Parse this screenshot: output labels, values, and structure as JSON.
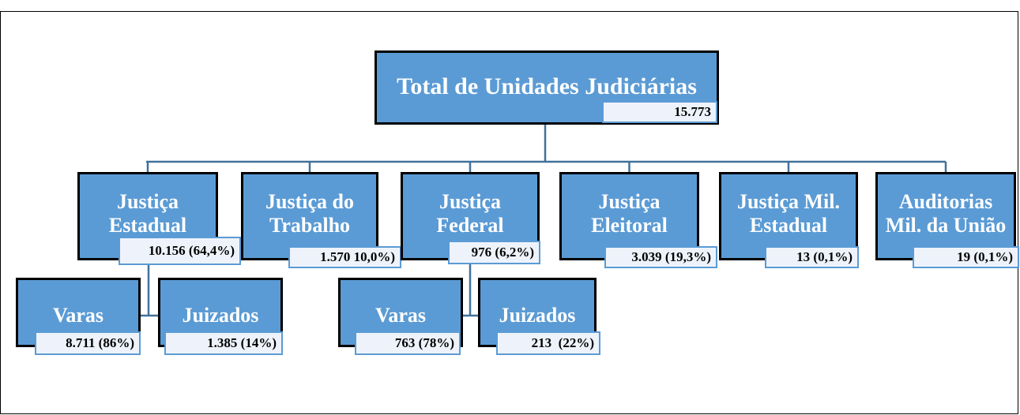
{
  "root": {
    "title": "Total de Unidades Judiciárias",
    "value": "15.773"
  },
  "nodes": [
    {
      "title": [
        "Justiça",
        "Estadual"
      ],
      "value": "10.156 (64,4%)",
      "children": [
        {
          "title": [
            "Varas"
          ],
          "value": "8.711 (86%)"
        },
        {
          "title": [
            "Juizados"
          ],
          "value": "1.385 (14%)"
        }
      ]
    },
    {
      "title": [
        "Justiça do",
        "Trabalho"
      ],
      "value": "1.570 10,0%)"
    },
    {
      "title": [
        "Justiça",
        "Federal"
      ],
      "value": "976 (6,2%)",
      "children": [
        {
          "title": [
            "Varas"
          ],
          "value": "763 (78%)"
        },
        {
          "title": [
            "Juizados"
          ],
          "value": "213  (22%)"
        }
      ]
    },
    {
      "title": [
        "Justiça",
        "Eleitoral"
      ],
      "value": "3.039 (19,3%)"
    },
    {
      "title": [
        "Justiça Mil.",
        "Estadual"
      ],
      "value": "13 (0,1%)"
    },
    {
      "title": [
        "Auditorias",
        "Mil. da União"
      ],
      "value": "19 (0,1%)"
    }
  ]
}
